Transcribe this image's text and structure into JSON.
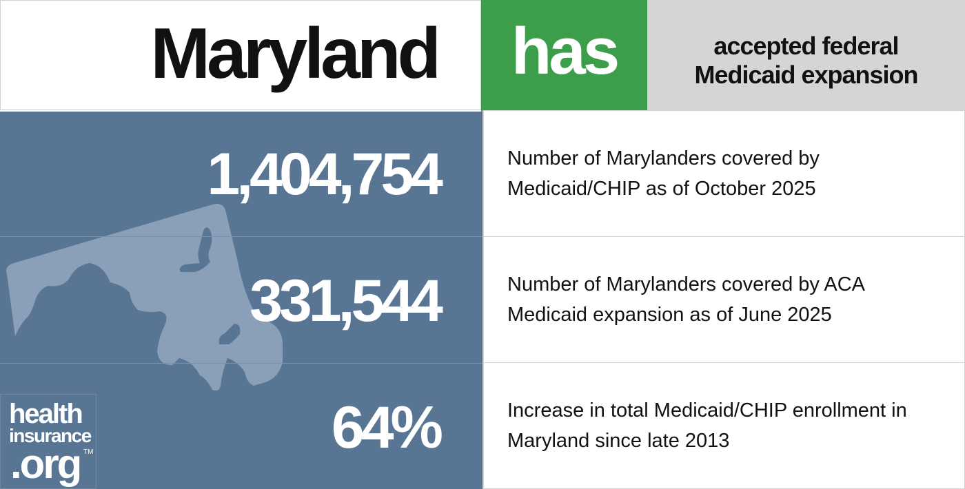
{
  "header": {
    "state": "Maryland",
    "status_word": "has",
    "status_text_line1": "accepted federal",
    "status_text_line2": "Medicaid expansion"
  },
  "colors": {
    "status_green": "#3c9e4b",
    "panel_blue": "#587593",
    "status_gray": "#d5d5d5"
  },
  "stats": [
    {
      "value": "1,404,754",
      "line1": "Number of Marylanders covered by",
      "line2": "Medicaid/CHIP as of October 2025"
    },
    {
      "value": "331,544",
      "line1": "Number of Marylanders covered by ACA",
      "line2": "Medicaid expansion as of June 2025"
    },
    {
      "value": "64%",
      "line1": "Increase in total Medicaid/CHIP enrollment in",
      "line2": "Maryland since late 2013"
    }
  ],
  "logo": {
    "line1": "health",
    "line2": "insurance",
    "line3": ".org",
    "tm": "TM"
  },
  "map_icon": "maryland-state-outline"
}
